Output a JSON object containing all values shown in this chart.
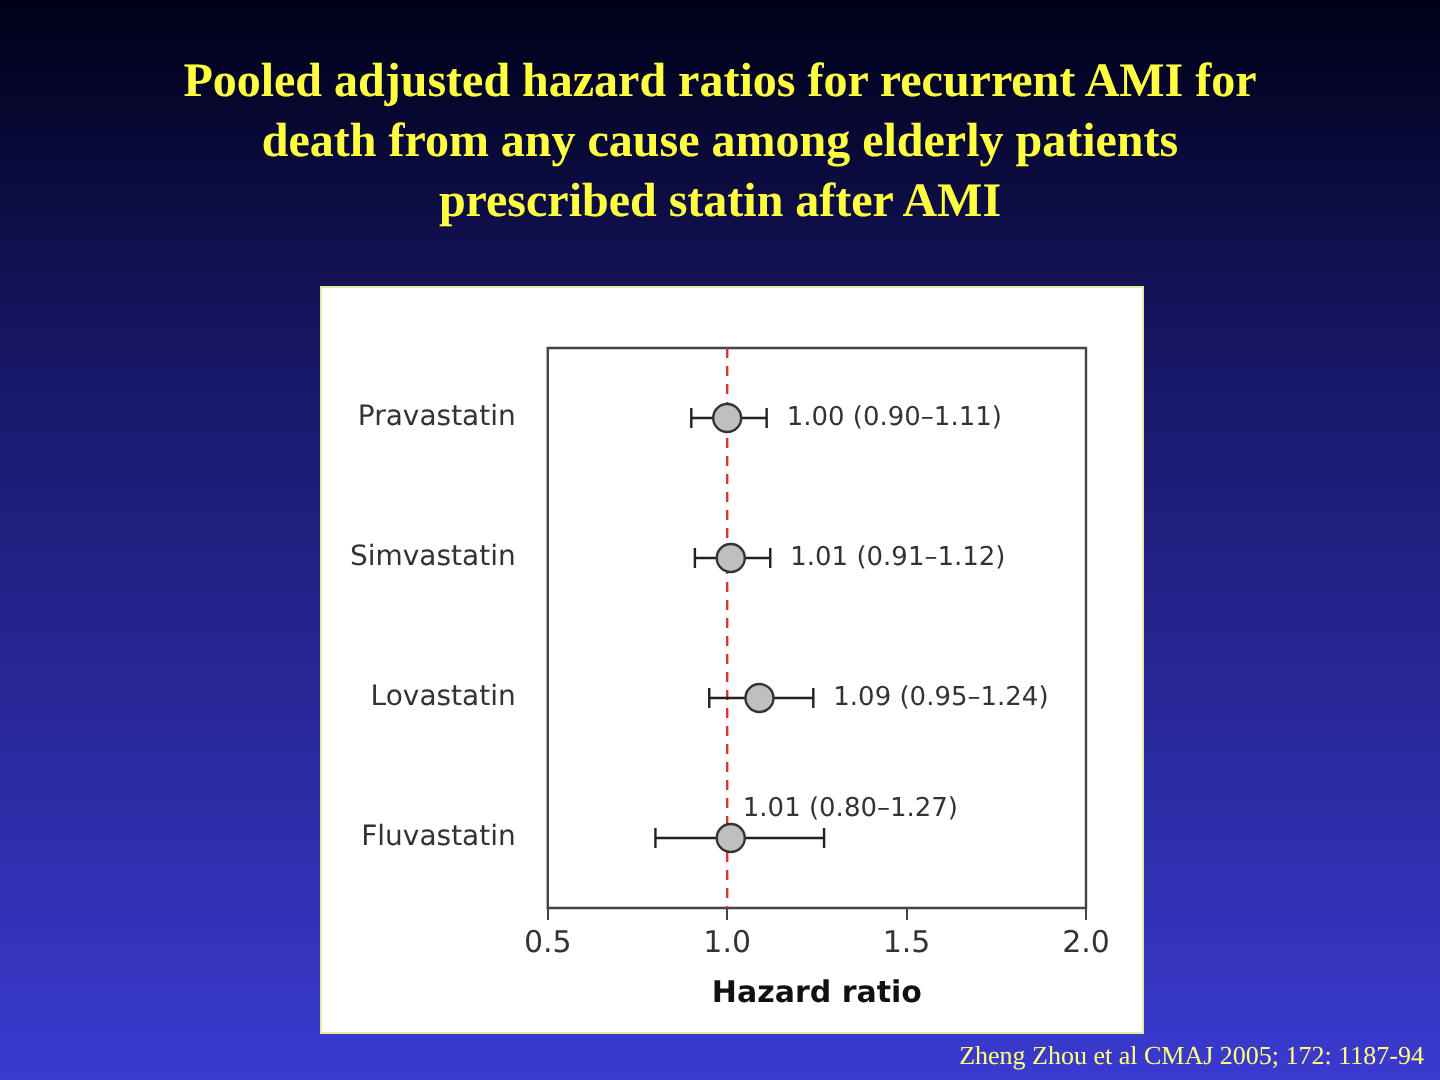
{
  "chart_data": {
    "type": "scatter",
    "orientation": "horizontal",
    "title": "Pooled adjusted hazard ratios for recurrent AMI for death from any cause among elderly patients prescribed statin after AMI",
    "categories": [
      "Pravastatin",
      "Simvastatin",
      "Lovastatin",
      "Fluvastatin"
    ],
    "values": [
      1.0,
      1.01,
      1.09,
      1.01
    ],
    "errors": [
      [
        0.9,
        1.11
      ],
      [
        0.91,
        1.12
      ],
      [
        0.95,
        1.24
      ],
      [
        0.8,
        1.27
      ]
    ],
    "value_labels": [
      "1.00 (0.90–1.11)",
      "1.01 (0.91–1.12)",
      "1.09 (0.95–1.24)",
      "1.01 (0.80–1.27)"
    ],
    "color": "#bfbfbf",
    "marker": "circle",
    "grid": false,
    "legend": false,
    "xlim": [
      0.5,
      2.0
    ],
    "xticks": [
      {
        "value": 0.5,
        "label": "0.5"
      },
      {
        "value": 1.0,
        "label": "1.0"
      },
      {
        "value": 1.5,
        "label": "1.5"
      },
      {
        "value": 2.0,
        "label": "2.0"
      }
    ],
    "xlabel": "Hazard ratio",
    "ref_lines": [
      {
        "axis": "x",
        "value": 1.0,
        "color": "#e03030",
        "line_style": "dashed"
      }
    ],
    "annotations": [
      "Zheng Zhou et al CMAJ 2005; 172: 1187-94"
    ]
  }
}
